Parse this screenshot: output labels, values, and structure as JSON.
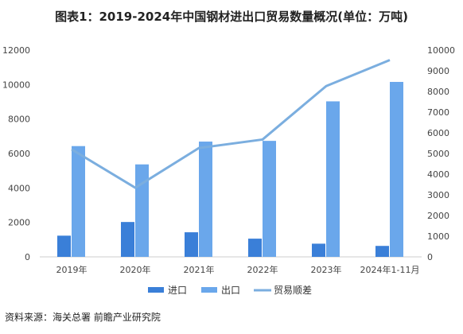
{
  "title": "图表1：2019-2024年中国钢材进出口贸易数量概况(单位：万吨)",
  "source": "资料来源：海关总署 前瞻产业研究院",
  "chart_data": {
    "type": "bar",
    "categories": [
      "2019年",
      "2020年",
      "2021年",
      "2022年",
      "2023年",
      "2024年1-11月"
    ],
    "series": [
      {
        "name": "进口",
        "type": "bar",
        "axis": "left",
        "color": "#3a7fd8",
        "values": [
          1230,
          2023,
          1427,
          1057,
          765,
          636
        ]
      },
      {
        "name": "出口",
        "type": "bar",
        "axis": "left",
        "color": "#6aa7eb",
        "values": [
          6429,
          5367,
          6690,
          6732,
          9026,
          10154
        ]
      },
      {
        "name": "贸易顺差",
        "type": "line",
        "axis": "right",
        "color": "#7baedf",
        "values": [
          5199,
          3344,
          5263,
          5675,
          8261,
          9518
        ]
      }
    ],
    "left_axis": {
      "ylim": [
        0,
        12000
      ],
      "ticks": [
        0,
        2000,
        4000,
        6000,
        8000,
        10000,
        12000
      ]
    },
    "right_axis": {
      "ylim": [
        0,
        10000
      ],
      "ticks": [
        0,
        1000,
        2000,
        3000,
        4000,
        5000,
        6000,
        7000,
        8000,
        9000,
        10000
      ]
    },
    "legend_position": "bottom",
    "grid": false
  }
}
